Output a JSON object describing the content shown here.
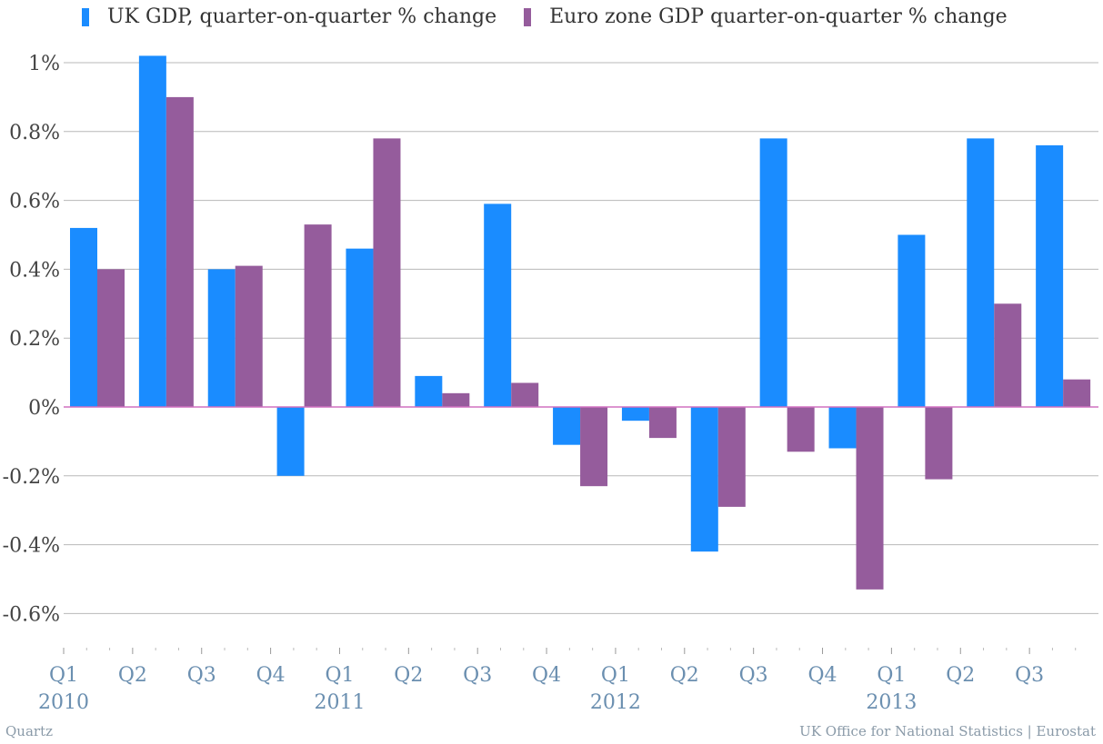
{
  "chart_data": {
    "type": "bar",
    "categories": [
      "Q1 2010",
      "Q2 2010",
      "Q3 2010",
      "Q4 2010",
      "Q1 2011",
      "Q2 2011",
      "Q3 2011",
      "Q4 2011",
      "Q1 2012",
      "Q2 2012",
      "Q3 2012",
      "Q4 2012",
      "Q1 2013",
      "Q2 2013",
      "Q3 2013"
    ],
    "series": [
      {
        "name": "UK GDP, quarter-on-quarter % change",
        "color": "#1a8cff",
        "values": [
          0.52,
          1.02,
          0.4,
          -0.2,
          0.46,
          0.09,
          0.59,
          -0.11,
          -0.04,
          -0.42,
          0.78,
          -0.12,
          0.5,
          0.78,
          0.76
        ]
      },
      {
        "name": "Euro zone GDP quarter-on-quarter % change",
        "color": "#955c9c",
        "values": [
          0.4,
          0.9,
          0.41,
          0.53,
          0.78,
          0.04,
          0.07,
          -0.23,
          -0.09,
          -0.29,
          -0.13,
          -0.53,
          -0.21,
          0.3,
          0.08
        ]
      }
    ],
    "ylim": [
      -0.7,
      1.02
    ],
    "yticks": [
      {
        "value": 1.0,
        "label": "1%"
      },
      {
        "value": 0.8,
        "label": "0.8%"
      },
      {
        "value": 0.6,
        "label": "0.6%"
      },
      {
        "value": 0.4,
        "label": "0.4%"
      },
      {
        "value": 0.2,
        "label": "0.2%"
      },
      {
        "value": 0.0,
        "label": "0%"
      },
      {
        "value": -0.2,
        "label": "-0.2%"
      },
      {
        "value": -0.4,
        "label": "-0.4%"
      },
      {
        "value": -0.6,
        "label": "-0.6%"
      }
    ],
    "xtick_labels": [
      "Q1",
      "Q2",
      "Q3",
      "Q4",
      "Q1",
      "Q2",
      "Q3",
      "Q4",
      "Q1",
      "Q2",
      "Q3",
      "Q4",
      "Q1",
      "Q2",
      "Q3"
    ],
    "year_labels": [
      "2010",
      "2011",
      "2012",
      "2013"
    ],
    "grid": true,
    "legend_position": "top-left",
    "colors": {
      "gridline": "#b8b8b8",
      "zero_line": "#d070c0",
      "axis_text": "#6b8fb0",
      "ytick_text": "#444444"
    }
  },
  "legend": {
    "uk": "UK GDP, quarter-on-quarter % change",
    "ez": "Euro zone GDP quarter-on-quarter % change"
  },
  "footer": {
    "source_left": "Quartz",
    "source_right": "UK Office for National Statistics | Eurostat"
  }
}
